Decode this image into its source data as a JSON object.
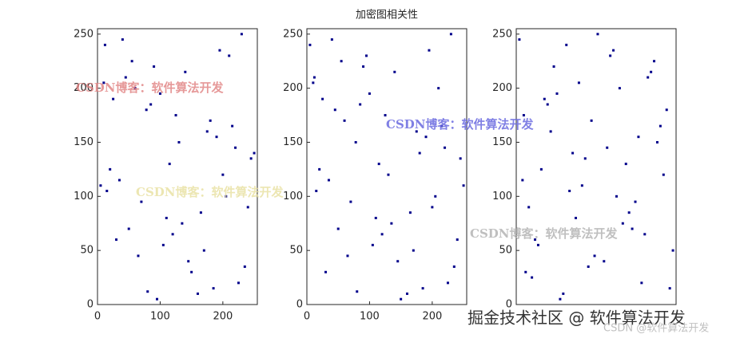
{
  "chart_data": [
    {
      "type": "scatter",
      "color": "#00008b",
      "xlim": [
        0,
        255
      ],
      "ylim": [
        0,
        255
      ],
      "xticks": [
        0,
        100,
        200
      ],
      "yticks": [
        0,
        50,
        100,
        150,
        200,
        250
      ],
      "x": [
        12,
        45,
        78,
        130,
        200,
        240,
        30,
        150,
        95,
        210,
        60,
        180,
        250,
        5,
        110,
        170,
        225,
        40,
        140,
        85,
        190,
        20,
        70,
        120,
        235,
        160,
        55,
        100,
        215,
        245,
        15,
        135,
        65,
        185,
        230,
        90,
        25,
        175,
        115,
        205,
        50,
        145,
        80,
        195,
        10,
        125,
        220,
        35,
        165,
        105
      ],
      "y": [
        240,
        210,
        180,
        150,
        120,
        90,
        60,
        30,
        5,
        230,
        200,
        170,
        140,
        110,
        80,
        50,
        20,
        245,
        215,
        185,
        155,
        125,
        95,
        65,
        35,
        10,
        225,
        195,
        165,
        135,
        105,
        75,
        45,
        15,
        250,
        220,
        190,
        160,
        130,
        100,
        70,
        40,
        12,
        235,
        205,
        175,
        145,
        115,
        85,
        55
      ]
    },
    {
      "type": "scatter",
      "color": "#00008b",
      "title": "加密图相关性",
      "xlim": [
        0,
        255
      ],
      "ylim": [
        0,
        255
      ],
      "xticks": [
        0,
        100,
        200
      ],
      "yticks": [
        0,
        50,
        100,
        150,
        200,
        250
      ],
      "x": [
        105,
        165,
        35,
        220,
        125,
        10,
        195,
        80,
        145,
        50,
        205,
        115,
        175,
        25,
        90,
        230,
        185,
        65,
        135,
        15,
        245,
        215,
        100,
        55,
        160,
        235,
        120,
        70,
        20,
        190,
        85,
        140,
        40,
        225,
        170,
        110,
        250,
        180,
        60,
        210,
        95,
        150,
        30,
        240,
        200,
        130,
        78,
        45,
        12,
        5
      ],
      "y": [
        55,
        85,
        115,
        145,
        175,
        205,
        235,
        12,
        40,
        70,
        100,
        130,
        160,
        190,
        220,
        250,
        15,
        45,
        75,
        105,
        135,
        165,
        195,
        225,
        10,
        35,
        65,
        95,
        125,
        155,
        185,
        215,
        245,
        20,
        50,
        80,
        110,
        140,
        170,
        200,
        230,
        5,
        30,
        60,
        90,
        120,
        150,
        180,
        210,
        240
      ]
    },
    {
      "type": "scatter",
      "color": "#00008b",
      "xlim": [
        0,
        255
      ],
      "ylim": [
        0,
        255
      ],
      "yticks": [
        0,
        50,
        100,
        150,
        200,
        250
      ],
      "x": [
        200,
        30,
        160,
        90,
        240,
        60,
        130,
        15,
        185,
        105,
        225,
        45,
        150,
        75,
        250,
        20,
        175,
        120,
        210,
        5,
        140,
        95,
        235,
        55,
        165,
        80,
        245,
        35,
        190,
        110,
        12,
        215,
        70,
        125,
        180,
        40,
        230,
        100,
        155,
        25,
        205,
        85,
        145,
        50,
        220,
        115,
        170,
        10,
        195,
        65
      ],
      "y": [
        20,
        60,
        100,
        140,
        180,
        220,
        250,
        30,
        70,
        110,
        150,
        190,
        230,
        10,
        50,
        90,
        130,
        170,
        210,
        245,
        40,
        80,
        120,
        160,
        200,
        240,
        15,
        55,
        95,
        135,
        175,
        215,
        5,
        45,
        85,
        125,
        165,
        205,
        235,
        25,
        65,
        105,
        145,
        185,
        225,
        35,
        75,
        115,
        155,
        195
      ]
    }
  ],
  "annotations": [
    "CSDN博客：软件算法开发",
    "CSDN博客：软件算法开发",
    "CSDN博客：软件算法开发",
    "CSDN博客：软件算法开发",
    "掘金技术社区 @ 软件算法开发",
    "CSDN @软件算法开发"
  ]
}
